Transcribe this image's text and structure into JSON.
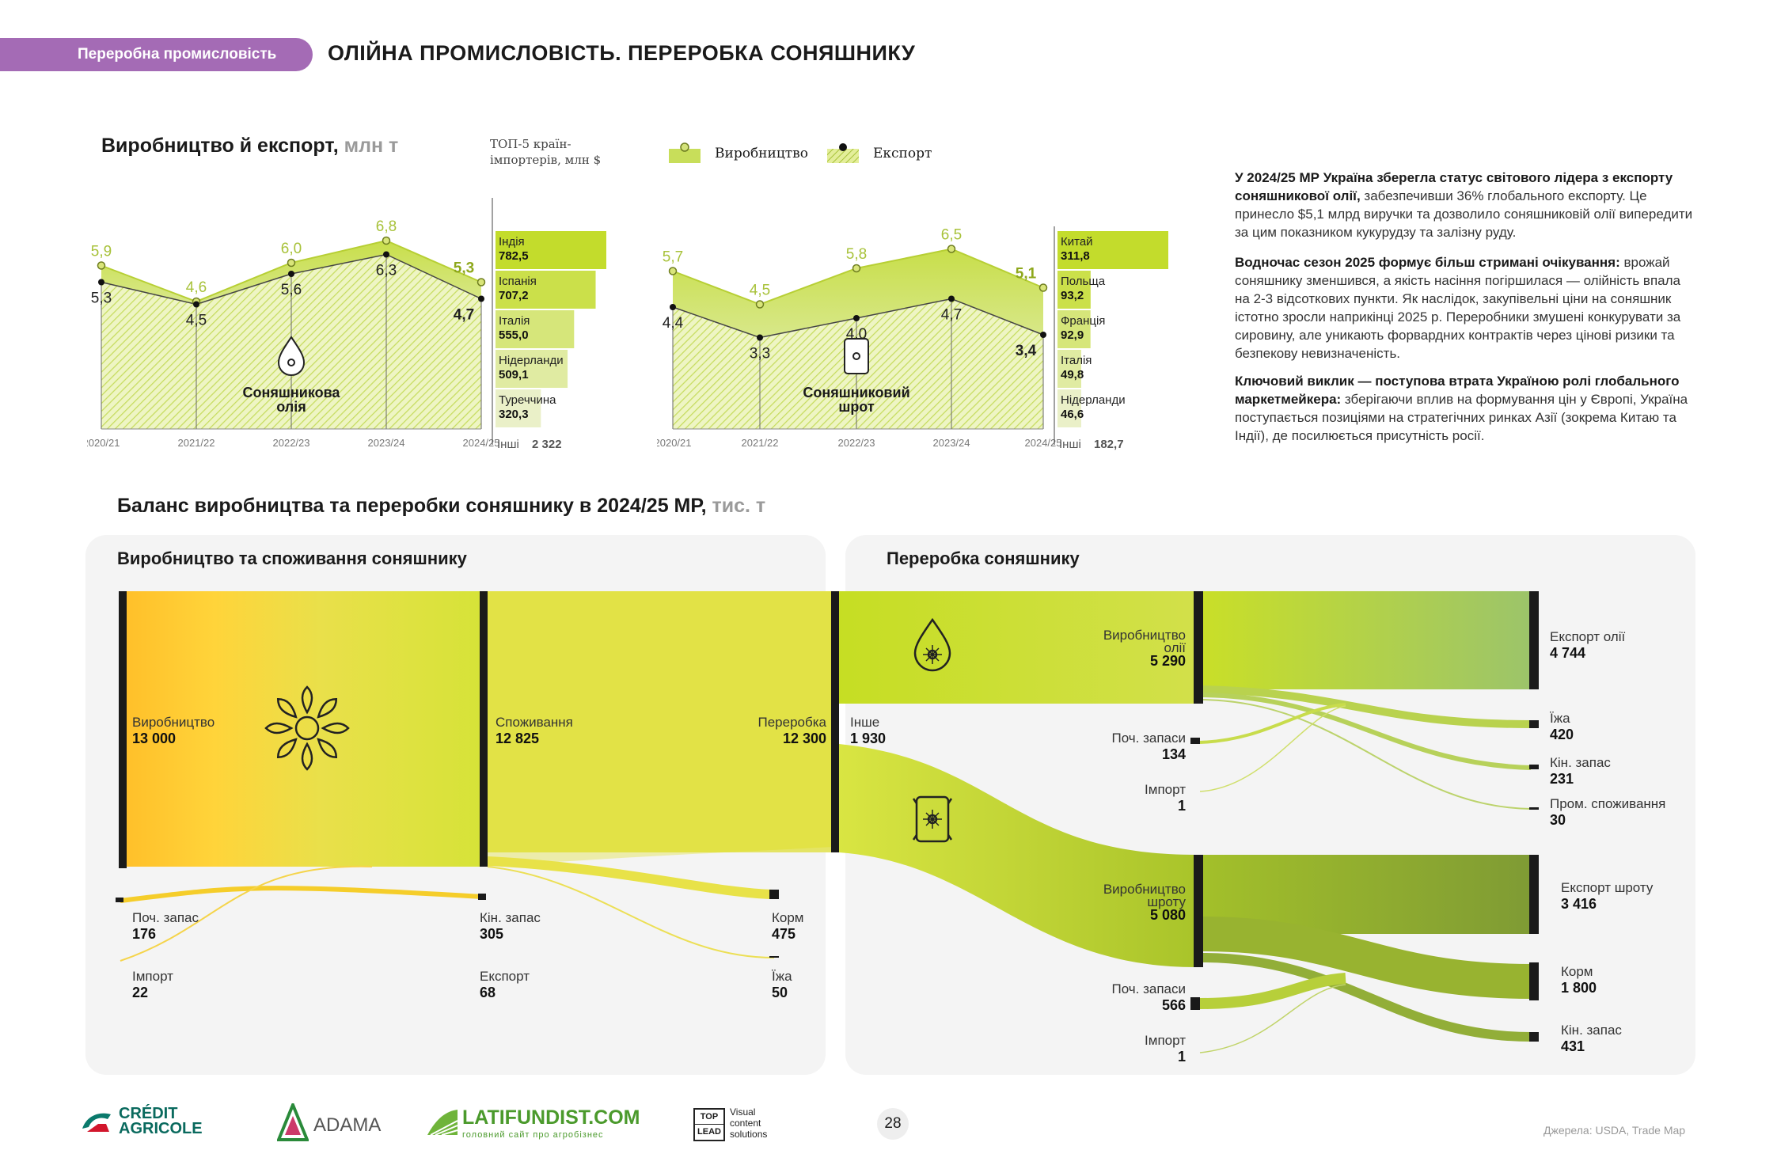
{
  "header": {
    "tag": "Переробна промисловість",
    "title": "ОЛІЙНА ПРОМИСЛОВІСТЬ. ПЕРЕРОБКА СОНЯШНИКУ"
  },
  "production_section": {
    "title": "Виробництво й експорт,",
    "unit": "млн т",
    "top5_title_1": "ТОП-5 країн-",
    "top5_title_2": "імпортерів, млн $",
    "legend_production": "Виробництво",
    "legend_export": "Експорт"
  },
  "text": {
    "p1_bold": "У 2024/25 МР Україна зберегла статус світового лідера з експорту соняшникової олії,",
    "p1_rest": " забезпечивши 36% глобального експорту. Це принесло $5,1 млрд виручки та дозволило соняшниковій олії випередити за цим показником кукурудзу та залізну руду.",
    "p2_bold": "Водночас сезон 2025 формує більш стримані очікування:",
    "p2_rest": " врожай соняшнику зменшився, а якість насіння погіршилася — олійність впала на 2-3 відсоткових пункти. Як наслідок, закупівельні ціни на соняшник істотно зросли наприкінці 2025 р. Переробники змушені конкурувати за сировину, але уникають форвардних контрактів через цінові ризики та безпекову невизначеність.",
    "p3_bold": "Ключовий виклик — поступова втрата Україною ролі глобального маркетмейкера:",
    "p3_rest": " зберігаючи вплив на формування цін у Європі, Україна поступається позиціями на стратегічних ринках Азії (зокрема Китаю та Індії), де посилюється присутність росії."
  },
  "balance": {
    "title": "Баланс виробництва та переробки соняшнику в 2024/25 МР,",
    "unit": "тис. т",
    "left_panel_title": "Виробництво та споживання соняшнику",
    "right_panel_title": "Переробка соняшнику"
  },
  "chart_data": [
    {
      "type": "area",
      "label": "Соняшникова олія",
      "categories": [
        "2020/21",
        "2021/22",
        "2022/23",
        "2023/24",
        "2024/25"
      ],
      "series": [
        {
          "name": "Виробництво",
          "values": [
            5.9,
            4.6,
            6.0,
            6.8,
            5.3
          ],
          "labels": [
            "5,9",
            "4,6",
            "6,0",
            "6,8",
            "5,3"
          ]
        },
        {
          "name": "Експорт",
          "values": [
            5.3,
            4.5,
            5.6,
            6.3,
            4.7
          ],
          "labels": [
            "5,3",
            "4,5",
            "5,6",
            "6,3",
            "4,7"
          ]
        }
      ],
      "top5": [
        {
          "country": "Індія",
          "value": 782.5,
          "label": "782,5"
        },
        {
          "country": "Іспанія",
          "value": 707.2,
          "label": "707,2"
        },
        {
          "country": "Італія",
          "value": 555.0,
          "label": "555,0"
        },
        {
          "country": "Нідерланди",
          "value": 509.1,
          "label": "509,1"
        },
        {
          "country": "Туреччина",
          "value": 320.3,
          "label": "320,3"
        }
      ],
      "others_label": "Інші",
      "others_value": "2 322"
    },
    {
      "type": "area",
      "label": "Соняшниковий шрот",
      "categories": [
        "2020/21",
        "2021/22",
        "2022/23",
        "2023/24",
        "2024/25"
      ],
      "series": [
        {
          "name": "Виробництво",
          "values": [
            5.7,
            4.5,
            5.8,
            6.5,
            5.1
          ],
          "labels": [
            "5,7",
            "4,5",
            "5,8",
            "6,5",
            "5,1"
          ]
        },
        {
          "name": "Експорт",
          "values": [
            4.4,
            3.3,
            4.0,
            4.7,
            3.4
          ],
          "labels": [
            "4,4",
            "3,3",
            "4,0",
            "4,7",
            "3,4"
          ]
        }
      ],
      "top5": [
        {
          "country": "Китай",
          "value": 311.8,
          "label": "311,8"
        },
        {
          "country": "Польща",
          "value": 93.2,
          "label": "93,2"
        },
        {
          "country": "Франція",
          "value": 92.9,
          "label": "92,9"
        },
        {
          "country": "Італія",
          "value": 49.8,
          "label": "49,8"
        },
        {
          "country": "Нідерланди",
          "value": 46.6,
          "label": "46,6"
        }
      ],
      "others_label": "Інші",
      "others_value": "182,7"
    }
  ],
  "sankey": {
    "production": {
      "name": "Виробництво",
      "value": "13 000"
    },
    "consumption": {
      "name": "Споживання",
      "value": "12 825"
    },
    "processing": {
      "name": "Переробка",
      "value": "12 300"
    },
    "beg_stock": {
      "name": "Поч. запас",
      "value": "176"
    },
    "import": {
      "name": "Імпорт",
      "value": "22"
    },
    "end_stock": {
      "name": "Кін. запас",
      "value": "305"
    },
    "export": {
      "name": "Експорт",
      "value": "68"
    },
    "feed": {
      "name": "Корм",
      "value": "475"
    },
    "food": {
      "name": "Їжа",
      "value": "50"
    },
    "other": {
      "name": "Інше",
      "value": "1 930"
    },
    "oil_prod": {
      "name1": "Виробництво",
      "name2": "олії",
      "value": "5 290"
    },
    "oil_beg_stock": {
      "name": "Поч. запаси",
      "value": "134"
    },
    "oil_import": {
      "name": "Імпорт",
      "value": "1"
    },
    "oil_export": {
      "name": "Експорт олії",
      "value": "4 744"
    },
    "oil_food": {
      "name": "Їжа",
      "value": "420"
    },
    "oil_end_stock": {
      "name": "Кін. запас",
      "value": "231"
    },
    "oil_industrial": {
      "name": "Пром. споживання",
      "value": "30"
    },
    "meal_prod": {
      "name1": "Виробництво",
      "name2": "шроту",
      "value": "5 080"
    },
    "meal_beg_stock": {
      "name": "Поч. запаси",
      "value": "566"
    },
    "meal_import": {
      "name": "Імпорт",
      "value": "1"
    },
    "meal_export": {
      "name": "Експорт шроту",
      "value": "3 416"
    },
    "meal_feed": {
      "name": "Корм",
      "value": "1 800"
    },
    "meal_end_stock": {
      "name": "Кін. запас",
      "value": "431"
    }
  },
  "footer": {
    "logo1": "CRÉDIT AGRICOLE",
    "logo1a": "CRÉDIT",
    "logo1b": "AGRICOLE",
    "logo2": "ADAMA",
    "logo3": "LATIFUNDIST.COM",
    "logo3_sub": "головний сайт про агробізнес",
    "logo4a": "TOP",
    "logo4b": "LEAD",
    "logo4_txt1": "Visual",
    "logo4_txt2": "content",
    "logo4_txt3": "solutions",
    "page_number": "28",
    "sources": "Джерела: USDA, Trade Map"
  }
}
